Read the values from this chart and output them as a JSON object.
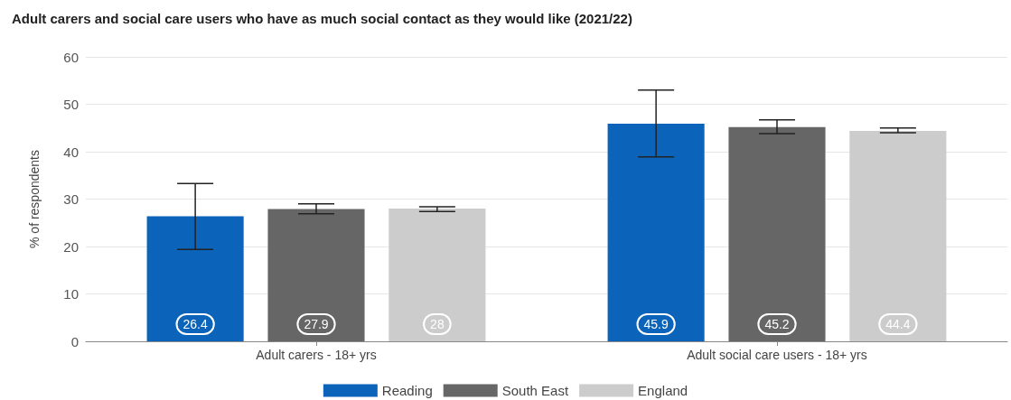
{
  "chart_data": {
    "type": "bar",
    "title": "Adult carers and social care users who have as much social contact as they would like (2021/22)",
    "ylabel": "% of respondents",
    "categories": [
      "Adult carers - 18+ yrs",
      "Adult social care users - 18+ yrs"
    ],
    "series": [
      {
        "name": "Reading",
        "color": "#0b64b9",
        "values": [
          26.4,
          45.9
        ],
        "errors": [
          [
            19.4,
            33.3
          ],
          [
            38.9,
            53.0
          ]
        ]
      },
      {
        "name": "South East",
        "color": "#666666",
        "values": [
          27.9,
          45.2
        ],
        "errors": [
          [
            26.9,
            29.0
          ],
          [
            43.8,
            46.7
          ]
        ]
      },
      {
        "name": "England",
        "color": "#cccccc",
        "values": [
          28,
          44.4
        ],
        "errors": [
          [
            27.4,
            28.4
          ],
          [
            44.0,
            45.0
          ]
        ]
      }
    ],
    "ylim": [
      0,
      60
    ],
    "yticks": [
      0,
      10,
      20,
      30,
      40,
      50,
      60
    ],
    "grid": "y",
    "legend": "bottom",
    "data_labels": true
  }
}
